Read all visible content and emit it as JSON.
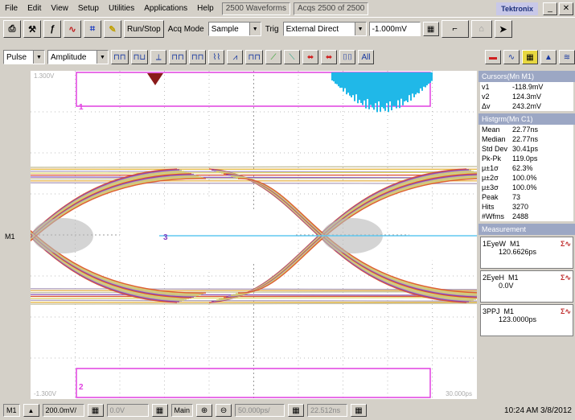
{
  "menu": {
    "items": [
      "File",
      "Edit",
      "View",
      "Setup",
      "Utilities",
      "Applications",
      "Help"
    ],
    "waveforms_status": "2500 Waveforms",
    "acqs_status": "Acqs 2500 of 2500",
    "brand": "Tektronix"
  },
  "toolbar": {
    "run_stop": "Run/Stop",
    "acq_mode_label": "Acq Mode",
    "acq_mode_value": "Sample",
    "trig_label": "Trig",
    "trig_value": "External Direct",
    "trig_level": "-1.000mV"
  },
  "meas_toolbar": {
    "source_value": "Pulse",
    "type_value": "Amplitude"
  },
  "screen": {
    "top_left_label": "1.300V",
    "bottom_left_label": "-1.300V",
    "bottom_right_label": "30.000ps",
    "channel_marker": "M1",
    "cursor1_label": "1",
    "cursor2_label": "2",
    "center_label": "3"
  },
  "cursors": {
    "header": "Cursors(Mn M1)",
    "rows": [
      {
        "k": "v1",
        "v": "-118.9mV"
      },
      {
        "k": "v2",
        "v": "124.3mV"
      },
      {
        "k": "Δv",
        "v": "243.2mV"
      }
    ]
  },
  "histogram": {
    "header": "Histgrm(Mn C1)",
    "rows": [
      {
        "k": "Mean",
        "v": "22.77ns"
      },
      {
        "k": "Median",
        "v": "22.77ns"
      },
      {
        "k": "Std Dev",
        "v": "30.41ps"
      },
      {
        "k": "Pk-Pk",
        "v": "119.0ps"
      },
      {
        "k": "μ±1σ",
        "v": "62.3%"
      },
      {
        "k": "μ±2σ",
        "v": "100.0%"
      },
      {
        "k": "μ±3σ",
        "v": "100.0%"
      },
      {
        "k": "Peak",
        "v": "73"
      },
      {
        "k": "Hits",
        "v": "3270"
      },
      {
        "k": "#Wfms",
        "v": "2488"
      }
    ]
  },
  "measurements": {
    "header": "Measurement",
    "items": [
      {
        "id": "1",
        "name": "EyeW",
        "src": "M1",
        "value": "120.6626ps"
      },
      {
        "id": "2",
        "name": "EyeH",
        "src": "M1",
        "value": "0.0V"
      },
      {
        "id": "3",
        "name": "PPJ",
        "src": "M1",
        "value": "123.0000ps"
      }
    ]
  },
  "bottom": {
    "channel": "M1",
    "scale": "200.0mV/",
    "offset": "0.0V",
    "timebase_label": "Main",
    "timebase_value": "50.000ps/",
    "position_value": "22.512ns",
    "datetime": "10:24 AM 3/8/2012"
  },
  "colors": {
    "graticule": "#bdbdbd",
    "cursor_box": "#e040e0",
    "eye_gray": "#b8b8b8",
    "eye_yellow": "#e8d840",
    "eye_red": "#d83030",
    "eye_purple": "#8040c0",
    "histogram_cyan": "#20b8e8"
  }
}
